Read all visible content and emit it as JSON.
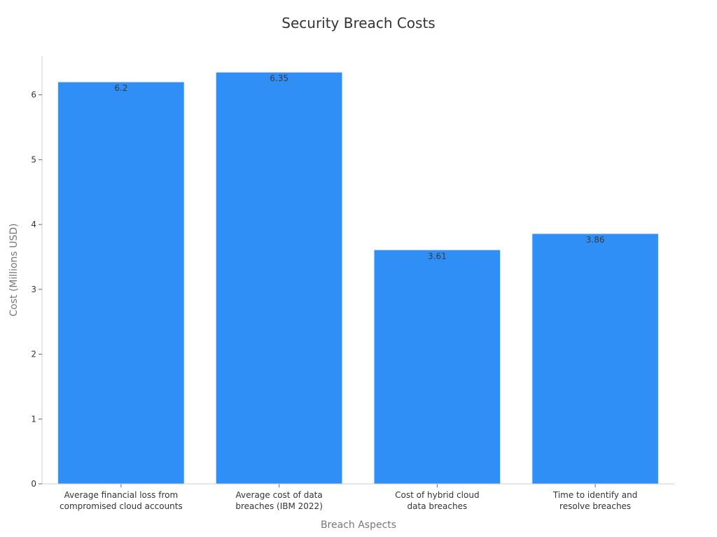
{
  "chart_data": {
    "type": "bar",
    "title": "Security Breach Costs",
    "xlabel": "Breach Aspects",
    "ylabel": "Cost (Millions USD)",
    "categories": [
      [
        "Average financial loss from",
        "compromised cloud accounts"
      ],
      [
        "Average cost of data",
        "breaches (IBM 2022)"
      ],
      [
        "Cost of hybrid cloud",
        "data breaches"
      ],
      [
        "Time to identify and",
        "resolve breaches"
      ]
    ],
    "values": [
      6.2,
      6.35,
      3.61,
      3.86
    ],
    "value_labels": [
      "6.2",
      "6.35",
      "3.61",
      "3.86"
    ],
    "ylim": [
      0,
      6.6
    ],
    "yticks": [
      0,
      1,
      2,
      3,
      4,
      5,
      6
    ],
    "grid": false,
    "legend": "none",
    "bar_color": "#2f8ff7",
    "bar_edge_color": "#e8f1fd"
  }
}
